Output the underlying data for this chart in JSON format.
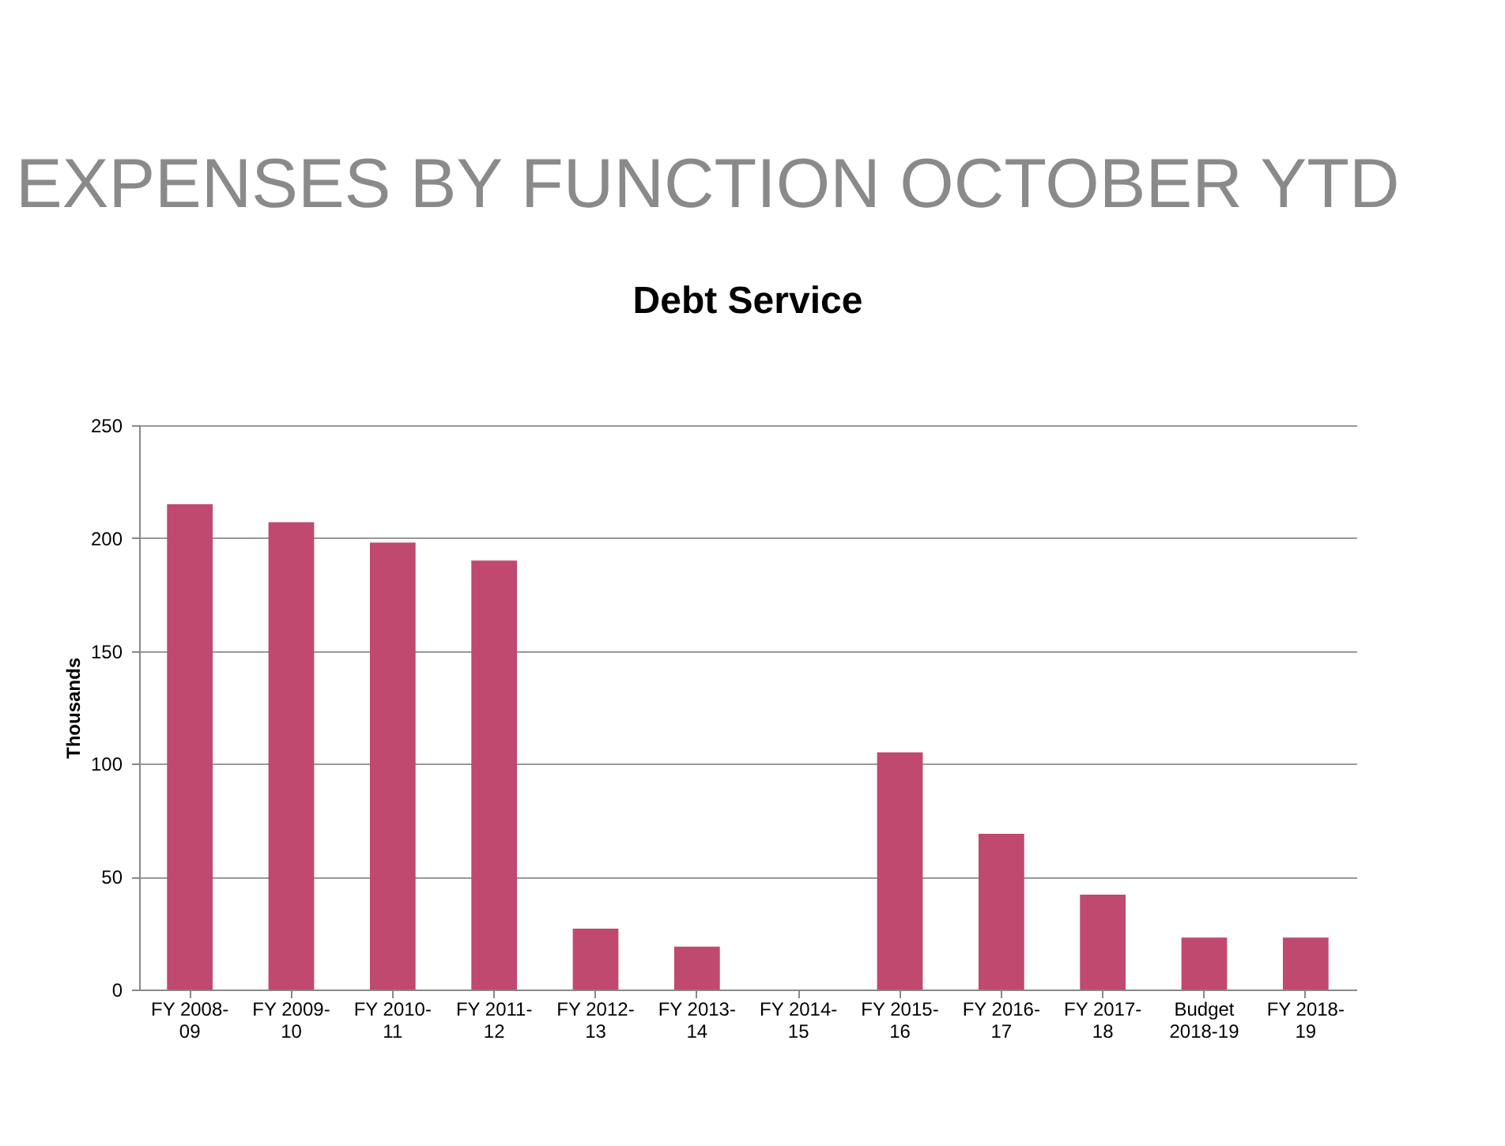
{
  "chart_data": {
    "type": "bar",
    "title": "EXPENSES BY FUNCTION OCTOBER YTD",
    "subtitle": "Debt Service",
    "ylabel": "Thousands",
    "categories": [
      "FY 2008-09",
      "FY 2009-10",
      "FY 2010-11",
      "FY 2011-12",
      "FY 2012-13",
      "FY 2013-14",
      "FY 2014-15",
      "FY 2015-16",
      "FY 2016-17",
      "FY 2017-18",
      "Budget 2018-19",
      "FY 2018-19"
    ],
    "values": [
      215,
      207,
      198,
      190,
      27,
      19,
      0,
      105,
      69,
      42,
      23,
      23
    ],
    "color": "#c0496f",
    "ylim": [
      0,
      250
    ],
    "yticks": [
      0,
      50,
      100,
      150,
      200,
      250
    ],
    "grid": "y"
  }
}
